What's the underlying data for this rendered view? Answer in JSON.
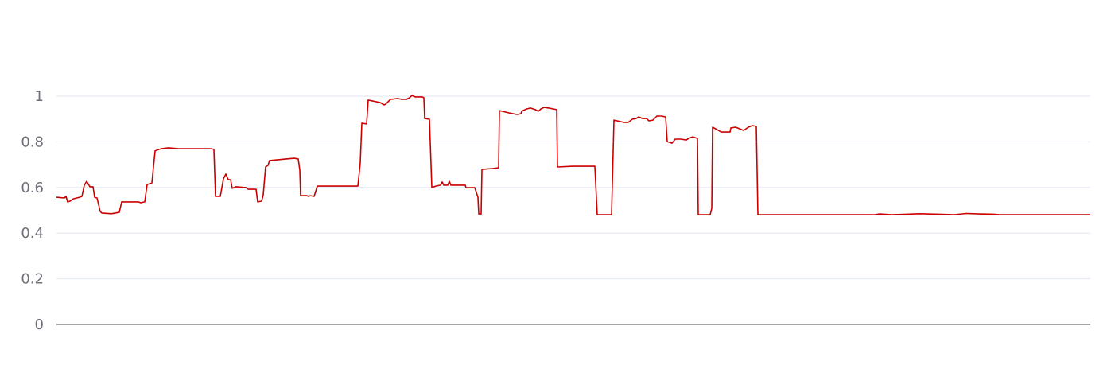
{
  "chart_data": {
    "type": "line",
    "title": "",
    "xlabel": "",
    "ylabel": "",
    "ylim": [
      0,
      1
    ],
    "xlim": [
      0,
      1300
    ],
    "grid": true,
    "y_ticks": [
      "0",
      "0.2",
      "0.4",
      "0.6",
      "0.8",
      "1"
    ],
    "y_tick_values": [
      0,
      0.2,
      0.4,
      0.6,
      0.8,
      1
    ],
    "colors": {
      "line": "#cc0000",
      "grid": "#e0e6f1",
      "axis": "#6e7079"
    },
    "series": [
      {
        "points": [
          [
            0,
            0.557
          ],
          [
            10,
            0.554
          ],
          [
            12,
            0.561
          ],
          [
            14,
            0.537
          ],
          [
            17,
            0.54
          ],
          [
            21,
            0.55
          ],
          [
            29,
            0.557
          ],
          [
            32,
            0.561
          ],
          [
            35,
            0.61
          ],
          [
            38,
            0.627
          ],
          [
            42,
            0.603
          ],
          [
            46,
            0.603
          ],
          [
            48,
            0.557
          ],
          [
            51,
            0.554
          ],
          [
            55,
            0.495
          ],
          [
            57,
            0.488
          ],
          [
            69,
            0.485
          ],
          [
            79,
            0.491
          ],
          [
            82,
            0.537
          ],
          [
            103,
            0.537
          ],
          [
            106,
            0.533
          ],
          [
            111,
            0.537
          ],
          [
            114,
            0.613
          ],
          [
            120,
            0.62
          ],
          [
            124,
            0.76
          ],
          [
            129,
            0.767
          ],
          [
            132,
            0.77
          ],
          [
            141,
            0.774
          ],
          [
            153,
            0.77
          ],
          [
            194,
            0.77
          ],
          [
            198,
            0.767
          ],
          [
            200,
            0.561
          ],
          [
            206,
            0.561
          ],
          [
            210,
            0.638
          ],
          [
            213,
            0.659
          ],
          [
            216,
            0.634
          ],
          [
            219,
            0.634
          ],
          [
            221,
            0.596
          ],
          [
            226,
            0.603
          ],
          [
            239,
            0.599
          ],
          [
            241,
            0.592
          ],
          [
            251,
            0.592
          ],
          [
            253,
            0.537
          ],
          [
            258,
            0.54
          ],
          [
            260,
            0.568
          ],
          [
            263,
            0.69
          ],
          [
            266,
            0.697
          ],
          [
            268,
            0.718
          ],
          [
            289,
            0.725
          ],
          [
            299,
            0.728
          ],
          [
            304,
            0.725
          ],
          [
            306,
            0.676
          ],
          [
            307,
            0.564
          ],
          [
            315,
            0.564
          ],
          [
            317,
            0.561
          ],
          [
            319,
            0.564
          ],
          [
            324,
            0.561
          ],
          [
            328,
            0.606
          ],
          [
            379,
            0.606
          ],
          [
            382,
            0.707
          ],
          [
            384,
            0.882
          ],
          [
            390,
            0.878
          ],
          [
            392,
            0.983
          ],
          [
            407,
            0.972
          ],
          [
            412,
            0.962
          ],
          [
            414,
            0.965
          ],
          [
            420,
            0.986
          ],
          [
            429,
            0.99
          ],
          [
            434,
            0.986
          ],
          [
            440,
            0.986
          ],
          [
            444,
            0.993
          ],
          [
            447,
            1.003
          ],
          [
            451,
            0.997
          ],
          [
            460,
            0.997
          ],
          [
            462,
            0.993
          ],
          [
            463,
            0.902
          ],
          [
            469,
            0.899
          ],
          [
            472,
            0.6
          ],
          [
            477,
            0.606
          ],
          [
            483,
            0.61
          ],
          [
            485,
            0.624
          ],
          [
            487,
            0.61
          ],
          [
            492,
            0.61
          ],
          [
            494,
            0.627
          ],
          [
            496,
            0.61
          ],
          [
            514,
            0.61
          ],
          [
            515,
            0.599
          ],
          [
            526,
            0.599
          ],
          [
            530,
            0.557
          ],
          [
            531,
            0.484
          ],
          [
            534,
            0.484
          ],
          [
            535,
            0.679
          ],
          [
            548,
            0.683
          ],
          [
            556,
            0.686
          ],
          [
            557,
            0.937
          ],
          [
            569,
            0.927
          ],
          [
            579,
            0.92
          ],
          [
            584,
            0.923
          ],
          [
            585,
            0.934
          ],
          [
            591,
            0.944
          ],
          [
            596,
            0.948
          ],
          [
            602,
            0.941
          ],
          [
            606,
            0.934
          ],
          [
            609,
            0.944
          ],
          [
            613,
            0.951
          ],
          [
            619,
            0.948
          ],
          [
            629,
            0.941
          ],
          [
            630,
            0.69
          ],
          [
            649,
            0.693
          ],
          [
            664,
            0.693
          ],
          [
            677,
            0.693
          ],
          [
            680,
            0.481
          ],
          [
            698,
            0.481
          ],
          [
            701,
            0.895
          ],
          [
            714,
            0.885
          ],
          [
            719,
            0.885
          ],
          [
            724,
            0.899
          ],
          [
            729,
            0.902
          ],
          [
            732,
            0.909
          ],
          [
            737,
            0.902
          ],
          [
            742,
            0.902
          ],
          [
            745,
            0.892
          ],
          [
            750,
            0.895
          ],
          [
            755,
            0.913
          ],
          [
            761,
            0.913
          ],
          [
            766,
            0.909
          ],
          [
            768,
            0.801
          ],
          [
            774,
            0.794
          ],
          [
            778,
            0.812
          ],
          [
            785,
            0.812
          ],
          [
            792,
            0.808
          ],
          [
            795,
            0.815
          ],
          [
            800,
            0.822
          ],
          [
            806,
            0.815
          ],
          [
            807,
            0.481
          ],
          [
            822,
            0.481
          ],
          [
            824,
            0.509
          ],
          [
            825,
            0.864
          ],
          [
            836,
            0.843
          ],
          [
            847,
            0.843
          ],
          [
            848,
            0.861
          ],
          [
            854,
            0.864
          ],
          [
            859,
            0.857
          ],
          [
            864,
            0.85
          ],
          [
            870,
            0.864
          ],
          [
            875,
            0.871
          ],
          [
            880,
            0.868
          ],
          [
            882,
            0.481
          ],
          [
            1029,
            0.481
          ],
          [
            1035,
            0.484
          ],
          [
            1050,
            0.481
          ],
          [
            1069,
            0.483
          ],
          [
            1085,
            0.485
          ],
          [
            1109,
            0.483
          ],
          [
            1129,
            0.481
          ],
          [
            1144,
            0.486
          ],
          [
            1160,
            0.484
          ],
          [
            1179,
            0.483
          ],
          [
            1185,
            0.481
          ],
          [
            1300,
            0.481
          ]
        ]
      }
    ]
  }
}
